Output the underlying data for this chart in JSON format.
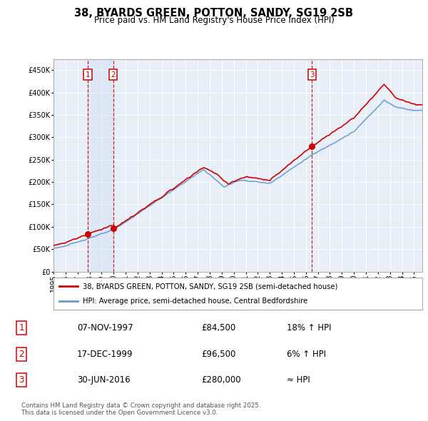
{
  "title": "38, BYARDS GREEN, POTTON, SANDY, SG19 2SB",
  "subtitle": "Price paid vs. HM Land Registry's House Price Index (HPI)",
  "property_label": "38, BYARDS GREEN, POTTON, SANDY, SG19 2SB (semi-detached house)",
  "hpi_label": "HPI: Average price, semi-detached house, Central Bedfordshire",
  "sales": [
    {
      "num": 1,
      "date": "07-NOV-1997",
      "price": 84500,
      "hpi_rel": "18% ↑ HPI",
      "year": 1997.854
    },
    {
      "num": 2,
      "date": "17-DEC-1999",
      "price": 96500,
      "hpi_rel": "6% ↑ HPI",
      "year": 1999.958
    },
    {
      "num": 3,
      "date": "30-JUN-2016",
      "price": 280000,
      "hpi_rel": "≈ HPI",
      "year": 2016.5
    }
  ],
  "footer": "Contains HM Land Registry data © Crown copyright and database right 2025.\nThis data is licensed under the Open Government Licence v3.0.",
  "ylim": [
    0,
    475000
  ],
  "yticks": [
    0,
    50000,
    100000,
    150000,
    200000,
    250000,
    300000,
    350000,
    400000,
    450000
  ],
  "ytick_labels": [
    "£0",
    "£50K",
    "£100K",
    "£150K",
    "£200K",
    "£250K",
    "£300K",
    "£350K",
    "£400K",
    "£450K"
  ],
  "xlim_start": 1995.0,
  "xlim_end": 2025.7,
  "plot_bg_color": "#e8eef8",
  "hpi_color": "#6699cc",
  "property_color": "#cc0000",
  "vline_color": "#cc0000",
  "grid_color": "#ffffff",
  "marker_color": "#cc0000",
  "number_box_color": "#cc0000",
  "shade_color": "#c8d8f0"
}
